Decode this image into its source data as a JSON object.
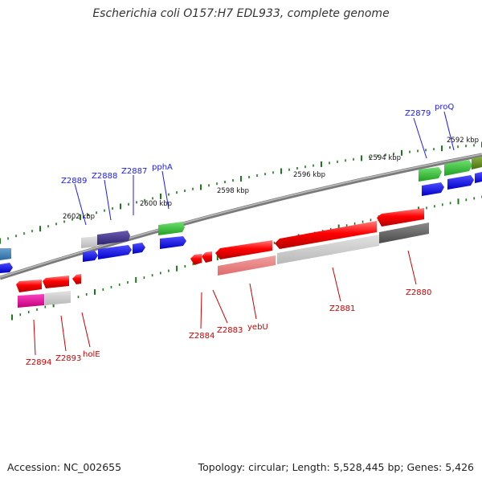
{
  "title": "Escherichia coli O157:H7 EDL933, complete genome",
  "accession_text": "Accession: NC_002655",
  "topology_text": "Topology: circular; Length: 5,528,445 bp; Genes: 5,426",
  "colors": {
    "blue_label": "#1a1aff",
    "red_label": "#cc0000",
    "backbone": "#777777",
    "tick": "#1a7a1a"
  },
  "kbp_markers": [
    "2602 kbp",
    "2600 kbp",
    "2598 kbp",
    "2596 kbp",
    "2594 kbp",
    "2592 kbp"
  ],
  "forward_gene_labels": [
    "Z2889",
    "Z2888",
    "Z2887",
    "pphA",
    "Z2879",
    "proQ"
  ],
  "reverse_gene_labels": [
    "Z2894",
    "Z2893",
    "holE",
    "Z2884",
    "Z2883",
    "yebU",
    "Z2881",
    "Z2880"
  ]
}
